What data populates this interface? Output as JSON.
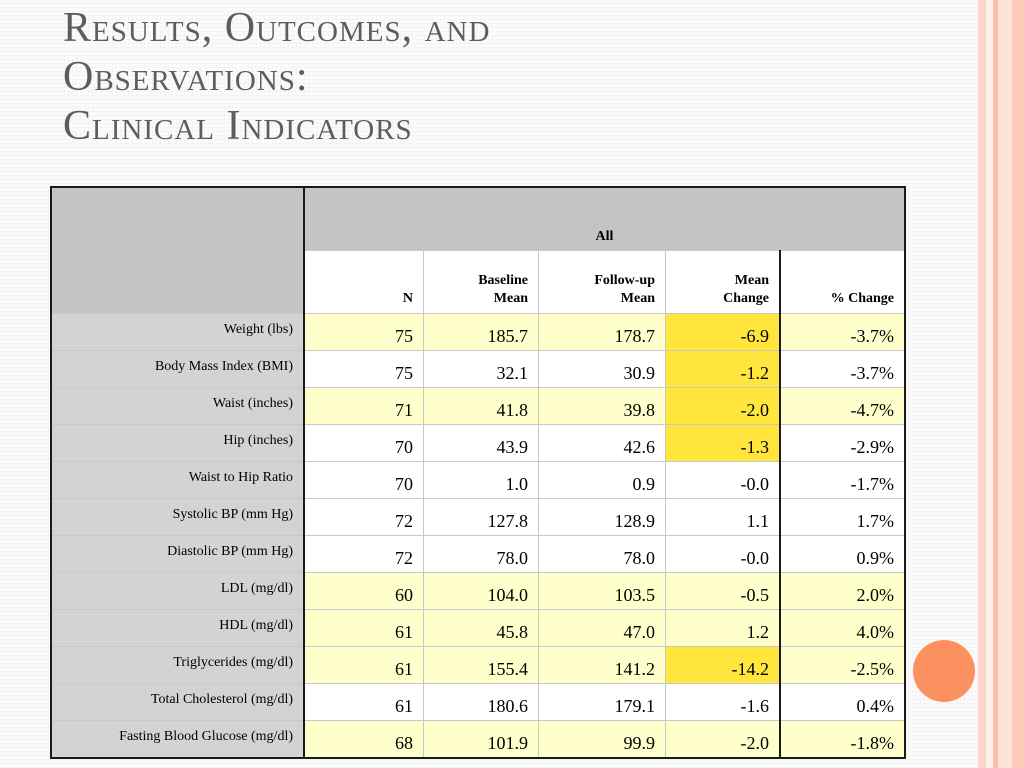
{
  "slide": {
    "title_lines": [
      "Results, Outcomes, and",
      "Observations:",
      "Clinical Indicators"
    ]
  },
  "colors": {
    "accent_circle": "#fb9060",
    "title_text": "#5c5c62",
    "header_gray": "#c4c4c4",
    "label_gray": "#d3d3d3",
    "pale_yellow": "#ffffcc",
    "bright_yellow": "#ffe53c"
  },
  "table": {
    "group_header": "All",
    "columns": [
      {
        "line1": "",
        "line2": "N"
      },
      {
        "line1": "Baseline",
        "line2": "Mean"
      },
      {
        "line1": "Follow-up",
        "line2": "Mean"
      },
      {
        "line1": "Mean",
        "line2": "Change"
      },
      {
        "line1": "",
        "line2": "% Change"
      }
    ],
    "rows": [
      {
        "label": "Weight (lbs)",
        "n": "75",
        "baseline": "185.7",
        "followup": "178.7",
        "change": "-6.9",
        "pct": "-3.7%",
        "fill": "pale",
        "change_fill": "bright"
      },
      {
        "label": "Body Mass Index (BMI)",
        "n": "75",
        "baseline": "32.1",
        "followup": "30.9",
        "change": "-1.2",
        "pct": "-3.7%",
        "fill": "white",
        "change_fill": "bright"
      },
      {
        "label": "Waist (inches)",
        "n": "71",
        "baseline": "41.8",
        "followup": "39.8",
        "change": "-2.0",
        "pct": "-4.7%",
        "fill": "pale",
        "change_fill": "bright"
      },
      {
        "label": "Hip (inches)",
        "n": "70",
        "baseline": "43.9",
        "followup": "42.6",
        "change": "-1.3",
        "pct": "-2.9%",
        "fill": "white",
        "change_fill": "bright"
      },
      {
        "label": "Waist to Hip Ratio",
        "n": "70",
        "baseline": "1.0",
        "followup": "0.9",
        "change": "-0.0",
        "pct": "-1.7%",
        "fill": "white",
        "change_fill": "white"
      },
      {
        "label": "Systolic BP (mm Hg)",
        "n": "72",
        "baseline": "127.8",
        "followup": "128.9",
        "change": "1.1",
        "pct": "1.7%",
        "fill": "white",
        "change_fill": "white"
      },
      {
        "label": "Diastolic BP (mm Hg)",
        "n": "72",
        "baseline": "78.0",
        "followup": "78.0",
        "change": "-0.0",
        "pct": "0.9%",
        "fill": "white",
        "change_fill": "white"
      },
      {
        "label": "LDL (mg/dl)",
        "n": "60",
        "baseline": "104.0",
        "followup": "103.5",
        "change": "-0.5",
        "pct": "2.0%",
        "fill": "pale",
        "change_fill": "pale"
      },
      {
        "label": "HDL (mg/dl)",
        "n": "61",
        "baseline": "45.8",
        "followup": "47.0",
        "change": "1.2",
        "pct": "4.0%",
        "fill": "pale",
        "change_fill": "pale"
      },
      {
        "label": "Triglycerides (mg/dl)",
        "n": "61",
        "baseline": "155.4",
        "followup": "141.2",
        "change": "-14.2",
        "pct": "-2.5%",
        "fill": "pale",
        "change_fill": "bright"
      },
      {
        "label": "Total Cholesterol (mg/dl)",
        "n": "61",
        "baseline": "180.6",
        "followup": "179.1",
        "change": "-1.6",
        "pct": "0.4%",
        "fill": "white",
        "change_fill": "white"
      },
      {
        "label": "Fasting Blood Glucose (mg/dl)",
        "n": "68",
        "baseline": "101.9",
        "followup": "99.9",
        "change": "-2.0",
        "pct": "-1.8%",
        "fill": "pale",
        "change_fill": "pale"
      }
    ]
  }
}
